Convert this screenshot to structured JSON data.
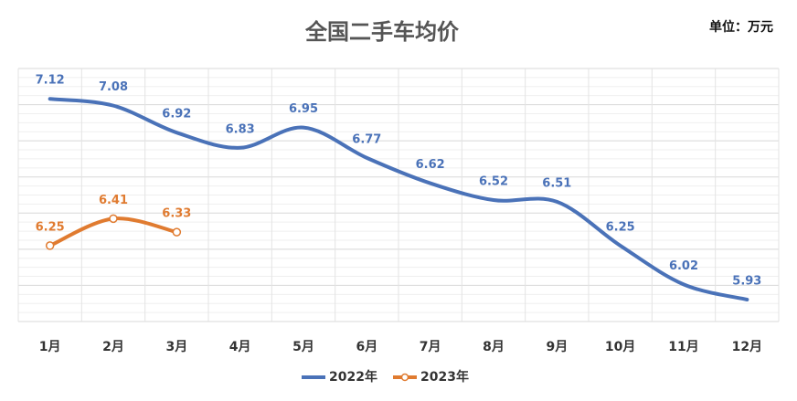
{
  "chart_data": {
    "type": "line",
    "title": "全国二手车均价",
    "unit_note": "单位：万元",
    "categories": [
      "1月",
      "2月",
      "3月",
      "4月",
      "5月",
      "6月",
      "7月",
      "8月",
      "9月",
      "10月",
      "11月",
      "12月"
    ],
    "series": [
      {
        "name": "2022年",
        "color": "#4a72b8",
        "values": [
          7.12,
          7.08,
          6.92,
          6.83,
          6.95,
          6.77,
          6.62,
          6.52,
          6.51,
          6.25,
          6.02,
          5.93
        ]
      },
      {
        "name": "2023年",
        "color": "#e07b30",
        "values": [
          6.25,
          6.41,
          6.33,
          null,
          null,
          null,
          null,
          null,
          null,
          null,
          null,
          null
        ]
      }
    ],
    "ylim": [
      5.8,
      7.3
    ],
    "grid": true,
    "legend": "bottom"
  }
}
